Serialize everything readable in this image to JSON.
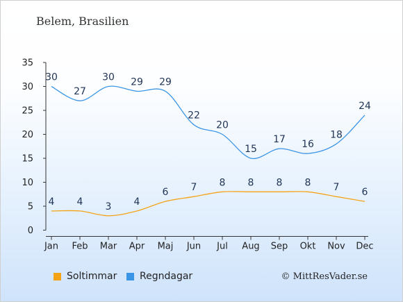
{
  "title": "Belem, Brasilien",
  "copyright": "© MittResVader.se",
  "chart_data": {
    "type": "line",
    "categories": [
      "Jan",
      "Feb",
      "Mar",
      "Apr",
      "Maj",
      "Jun",
      "Jul",
      "Aug",
      "Sep",
      "Okt",
      "Nov",
      "Dec"
    ],
    "ylim": [
      0,
      35
    ],
    "yticks": [
      0,
      5,
      10,
      15,
      20,
      25,
      30,
      35
    ],
    "grid": false,
    "legend_position": "bottom-left",
    "series": [
      {
        "name": "Soltimmar",
        "color": "#f5a316",
        "values": [
          4,
          4,
          3,
          4,
          6,
          7,
          8,
          8,
          8,
          8,
          7,
          6
        ]
      },
      {
        "name": "Regndagar",
        "color": "#3b95e6",
        "values": [
          30,
          27,
          30,
          29,
          29,
          22,
          20,
          15,
          17,
          16,
          18,
          24
        ]
      }
    ]
  }
}
